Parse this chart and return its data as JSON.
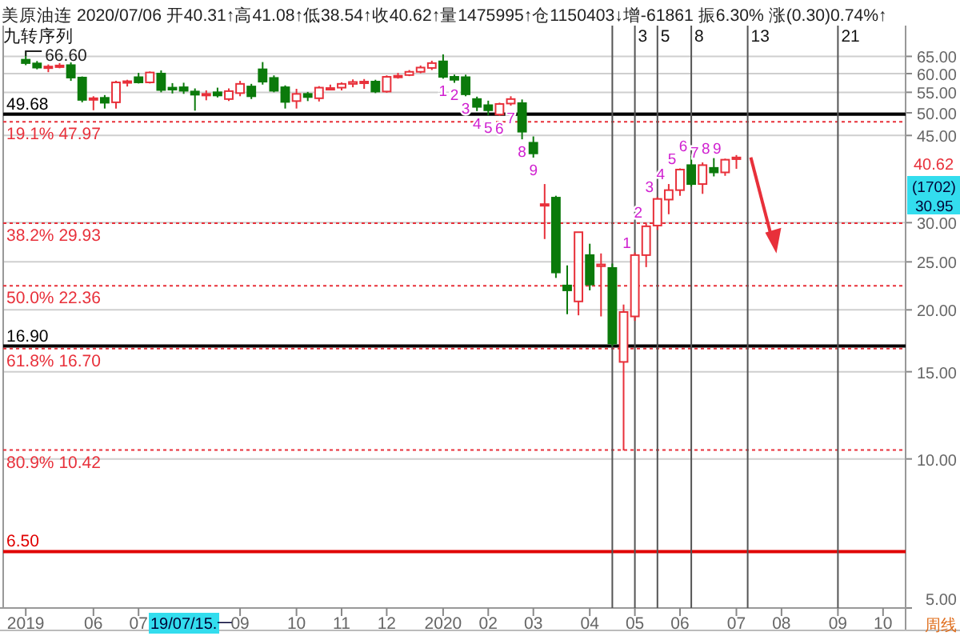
{
  "chart_data": {
    "type": "candlestick",
    "title": "美原油连 2020/07/06 开40.31↑高41.08↑低38.54↑收40.62↑量1475995↑仓1150403↓增-61861 振6.30% 涨(0.30)0.74%↑",
    "subtitle": "九转序列",
    "x": [
      "2019-04-22",
      "2019-04-29",
      "2019-05-06",
      "2019-05-13",
      "2019-05-20",
      "2019-05-27",
      "2019-06-03",
      "2019-06-10",
      "2019-06-17",
      "2019-06-24",
      "2019-07-01",
      "2019-07-08",
      "2019-07-15",
      "2019-07-22",
      "2019-07-29",
      "2019-08-05",
      "2019-08-12",
      "2019-08-19",
      "2019-08-26",
      "2019-09-02",
      "2019-09-09",
      "2019-09-16",
      "2019-09-23",
      "2019-09-30",
      "2019-10-07",
      "2019-10-14",
      "2019-10-21",
      "2019-10-28",
      "2019-11-04",
      "2019-11-11",
      "2019-11-18",
      "2019-11-25",
      "2019-12-02",
      "2019-12-09",
      "2019-12-16",
      "2019-12-23",
      "2019-12-30",
      "2020-01-06",
      "2020-01-13",
      "2020-01-20",
      "2020-01-27",
      "2020-02-03",
      "2020-02-10",
      "2020-02-17",
      "2020-02-24",
      "2020-03-02",
      "2020-03-09",
      "2020-03-16",
      "2020-03-23",
      "2020-03-30",
      "2020-04-06",
      "2020-04-13",
      "2020-04-20",
      "2020-04-27",
      "2020-05-04",
      "2020-05-11",
      "2020-05-18",
      "2020-05-25",
      "2020-06-01",
      "2020-06-08",
      "2020-06-15",
      "2020-06-22",
      "2020-06-29",
      "2020-07-06"
    ],
    "ohlc": [
      [
        64.0,
        66.6,
        62.4,
        63.0
      ],
      [
        62.9,
        63.6,
        61.2,
        61.7
      ],
      [
        61.6,
        62.6,
        60.4,
        62.0
      ],
      [
        62.0,
        63.0,
        61.5,
        62.3
      ],
      [
        62.4,
        63.2,
        58.0,
        58.9
      ],
      [
        58.9,
        59.2,
        52.5,
        53.1
      ],
      [
        53.3,
        54.0,
        50.6,
        53.5
      ],
      [
        53.6,
        54.3,
        51.0,
        52.4
      ],
      [
        52.5,
        58.0,
        51.0,
        57.6
      ],
      [
        57.5,
        58.3,
        56.5,
        57.9
      ],
      [
        59.0,
        60.2,
        57.3,
        57.6
      ],
      [
        57.6,
        60.6,
        57.3,
        60.3
      ],
      [
        60.0,
        60.9,
        55.0,
        55.6
      ],
      [
        56.2,
        57.4,
        54.7,
        55.7
      ],
      [
        56.3,
        57.5,
        54.6,
        55.4
      ],
      [
        55.2,
        56.0,
        50.5,
        54.4
      ],
      [
        54.4,
        55.5,
        53.0,
        54.6
      ],
      [
        55.0,
        56.2,
        53.7,
        54.2
      ],
      [
        53.3,
        56.0,
        52.8,
        55.3
      ],
      [
        54.8,
        58.0,
        54.0,
        57.2
      ],
      [
        56.5,
        57.2,
        53.3,
        54.0
      ],
      [
        61.2,
        63.3,
        57.0,
        57.8
      ],
      [
        58.8,
        59.5,
        55.0,
        55.4
      ],
      [
        56.3,
        56.8,
        51.0,
        52.6
      ],
      [
        52.8,
        55.9,
        51.0,
        54.6
      ],
      [
        54.6,
        55.1,
        52.8,
        53.8
      ],
      [
        53.5,
        56.6,
        52.7,
        56.2
      ],
      [
        55.8,
        57.0,
        55.6,
        56.1
      ],
      [
        56.2,
        57.6,
        55.5,
        57.2
      ],
      [
        57.2,
        58.4,
        56.3,
        57.7
      ],
      [
        57.7,
        58.5,
        55.9,
        57.8
      ],
      [
        57.8,
        58.3,
        54.8,
        55.2
      ],
      [
        55.2,
        59.5,
        54.9,
        59.1
      ],
      [
        59.1,
        60.2,
        58.6,
        59.4
      ],
      [
        59.6,
        61.0,
        59.3,
        60.5
      ],
      [
        60.5,
        62.3,
        60.1,
        61.7
      ],
      [
        61.6,
        63.7,
        61.0,
        63.0
      ],
      [
        63.5,
        65.6,
        58.6,
        59.1
      ],
      [
        59.1,
        59.7,
        57.5,
        58.3
      ],
      [
        59.0,
        59.7,
        54.0,
        54.5
      ],
      [
        53.3,
        53.9,
        50.4,
        51.4
      ],
      [
        51.8,
        52.9,
        49.4,
        50.6
      ],
      [
        49.6,
        52.4,
        49.3,
        52.1
      ],
      [
        52.2,
        54.0,
        51.7,
        53.3
      ],
      [
        52.3,
        53.2,
        44.2,
        45.8
      ],
      [
        43.5,
        44.8,
        40.6,
        41.4
      ],
      [
        32.5,
        35.9,
        27.8,
        32.7
      ],
      [
        33.7,
        34.0,
        23.2,
        23.8
      ],
      [
        22.4,
        24.6,
        19.6,
        21.9
      ],
      [
        20.8,
        28.7,
        19.5,
        28.7
      ],
      [
        25.8,
        27.2,
        21.9,
        22.5
      ],
      [
        24.5,
        26.0,
        19.4,
        24.7
      ],
      [
        24.3,
        24.8,
        16.9,
        17.1
      ],
      [
        15.7,
        20.5,
        10.4,
        19.8
      ],
      [
        19.4,
        26.1,
        19.0,
        25.8
      ],
      [
        25.8,
        30.0,
        24.4,
        29.5
      ],
      [
        29.6,
        33.8,
        29.0,
        33.5
      ],
      [
        33.4,
        35.9,
        31.2,
        34.9
      ],
      [
        34.9,
        38.6,
        34.0,
        38.4
      ],
      [
        39.2,
        40.9,
        35.5,
        35.9
      ],
      [
        35.9,
        39.7,
        34.3,
        39.2
      ],
      [
        38.7,
        40.5,
        37.2,
        37.9
      ],
      [
        37.9,
        40.4,
        37.3,
        40.2
      ],
      [
        40.31,
        41.08,
        38.54,
        40.62
      ]
    ],
    "xlim": [
      "2019-04-08",
      "2020-10-19"
    ],
    "xticks": [
      {
        "value": "2019-04-22",
        "label": "2019"
      },
      {
        "value": "2019-06-03",
        "label": "06"
      },
      {
        "value": "2019-07-01",
        "label": "07"
      },
      {
        "value": "2019-09-02",
        "label": "09"
      },
      {
        "value": "2019-10-07",
        "label": "10"
      },
      {
        "value": "2019-11-04",
        "label": "11"
      },
      {
        "value": "2019-12-02",
        "label": "12"
      },
      {
        "value": "2020-01-06",
        "label": "2020"
      },
      {
        "value": "2020-02-03",
        "label": "02"
      },
      {
        "value": "2020-03-02",
        "label": "03"
      },
      {
        "value": "2020-04-06",
        "label": "04"
      },
      {
        "value": "2020-05-04",
        "label": "05"
      },
      {
        "value": "2020-06-01",
        "label": "06"
      },
      {
        "value": "2020-07-06",
        "label": "07"
      },
      {
        "value": "2020-08-03",
        "label": "08"
      },
      {
        "value": "2020-09-07",
        "label": "09"
      },
      {
        "value": "2020-10-05",
        "label": "10"
      }
    ],
    "ylim": [
      5,
      75
    ],
    "log": "y",
    "yticks": [
      {
        "value": 65,
        "label": "65.00"
      },
      {
        "value": 60,
        "label": "60.00"
      },
      {
        "value": 55,
        "label": "55.00"
      },
      {
        "value": 50,
        "label": "50.00"
      },
      {
        "value": 45,
        "label": "45.00"
      },
      {
        "value": 30,
        "label": "30.00"
      },
      {
        "value": 25,
        "label": "25.00"
      },
      {
        "value": 20,
        "label": "20.00"
      },
      {
        "value": 15,
        "label": "15.00"
      },
      {
        "value": 10,
        "label": "10.00"
      },
      {
        "value": 5,
        "label": "5.00"
      }
    ],
    "grid": "y",
    "ref_lines": [
      {
        "axis": "y",
        "value": 49.68,
        "label": "49.68",
        "color": "#000000",
        "line_style": "solid"
      },
      {
        "axis": "y",
        "value": 47.97,
        "label": "19.1% 47.97",
        "color": "#e8303a",
        "line_style": "dotted"
      },
      {
        "axis": "y",
        "value": 29.93,
        "label": "38.2% 29.93",
        "color": "#e8303a",
        "line_style": "dotted"
      },
      {
        "axis": "y",
        "value": 22.36,
        "label": "50.0% 22.36",
        "color": "#e8303a",
        "line_style": "dotted"
      },
      {
        "axis": "y",
        "value": 16.9,
        "label": "16.90",
        "color": "#000000",
        "line_style": "solid"
      },
      {
        "axis": "y",
        "value": 16.7,
        "label": "61.8% 16.70",
        "color": "#e8303a",
        "line_style": "dotted"
      },
      {
        "axis": "y",
        "value": 10.42,
        "label": "80.9% 10.42",
        "color": "#e8303a",
        "line_style": "dotted"
      },
      {
        "axis": "y",
        "value": 6.5,
        "label": "6.50",
        "color": "#e00000",
        "line_style": "solid"
      },
      {
        "axis": "x",
        "value": "2020-04-20",
        "color": "#555555",
        "line_style": "solid"
      },
      {
        "axis": "x",
        "value": "2020-05-04",
        "label": "3",
        "color": "#555555",
        "line_style": "solid"
      },
      {
        "axis": "x",
        "value": "2020-05-18",
        "label": "5",
        "color": "#555555",
        "line_style": "solid"
      },
      {
        "axis": "x",
        "value": "2020-06-08",
        "label": "8",
        "color": "#555555",
        "line_style": "solid"
      },
      {
        "axis": "x",
        "value": "2020-07-13",
        "label": "13",
        "color": "#555555",
        "line_style": "solid"
      },
      {
        "axis": "x",
        "value": "2020-09-07",
        "label": "21",
        "color": "#555555",
        "line_style": "solid"
      }
    ],
    "annotations": [
      "(1702)",
      "30.95",
      "19/07/15.一",
      "周线",
      "40.62",
      {
        "text": "66.60",
        "x": "2019-04-22",
        "y": 66.6
      },
      {
        "text": "1",
        "x": "2020-01-06",
        "y": 58.6
      },
      {
        "text": "2",
        "x": "2020-01-13",
        "y": 57.5
      },
      {
        "text": "3",
        "x": "2020-01-20",
        "y": 54.0
      },
      {
        "text": "4",
        "x": "2020-01-27",
        "y": 50.4
      },
      {
        "text": "5",
        "x": "2020-02-03",
        "y": 49.4
      },
      {
        "text": "6",
        "x": "2020-02-10",
        "y": 49.3
      },
      {
        "text": "7",
        "x": "2020-02-17",
        "y": 51.7
      },
      {
        "text": "8",
        "x": "2020-02-24",
        "y": 44.2
      },
      {
        "text": "9",
        "x": "2020-03-02",
        "y": 40.6
      },
      {
        "text": "1",
        "x": "2020-05-04",
        "y": 26.1
      },
      {
        "text": "2",
        "x": "2020-05-11",
        "y": 30.0
      },
      {
        "text": "3",
        "x": "2020-05-18",
        "y": 33.8
      },
      {
        "text": "4",
        "x": "2020-05-25",
        "y": 35.9
      },
      {
        "text": "5",
        "x": "2020-06-01",
        "y": 38.6
      },
      {
        "text": "6",
        "x": "2020-06-08",
        "y": 40.9
      },
      {
        "text": "7",
        "x": "2020-06-15",
        "y": 39.7
      },
      {
        "text": "8",
        "x": "2020-06-22",
        "y": 40.5
      },
      {
        "text": "9",
        "x": "2020-06-29",
        "y": 40.4
      }
    ]
  }
}
